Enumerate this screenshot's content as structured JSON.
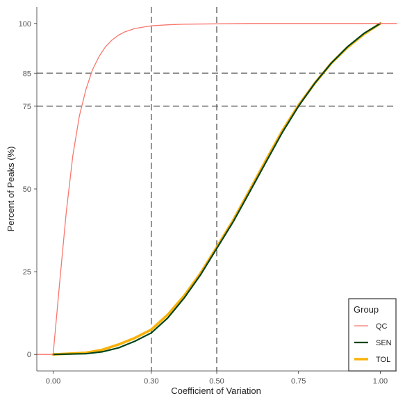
{
  "chart_data": {
    "type": "line",
    "title": "",
    "xlabel": "Coefficient of Variation",
    "ylabel": "Percent of Peaks (%)",
    "xlim": [
      -0.05,
      1.05
    ],
    "ylim": [
      -5,
      105
    ],
    "x_ticks": [
      {
        "value": 0.0,
        "label": "0.00"
      },
      {
        "value": 0.3,
        "label": "0.30"
      },
      {
        "value": 0.5,
        "label": "0.50"
      },
      {
        "value": 0.75,
        "label": "0.75"
      },
      {
        "value": 1.0,
        "label": "1.00"
      }
    ],
    "y_ticks": [
      {
        "value": 0,
        "label": "0"
      },
      {
        "value": 25,
        "label": "25"
      },
      {
        "value": 50,
        "label": "50"
      },
      {
        "value": 75,
        "label": "75"
      },
      {
        "value": 85,
        "label": "85"
      },
      {
        "value": 100,
        "label": "100"
      }
    ],
    "reference_lines": {
      "x": [
        0.3,
        0.5
      ],
      "y": [
        75,
        85
      ]
    },
    "grid": false,
    "legend": {
      "title": "Group",
      "position": "bottom-right"
    },
    "series": [
      {
        "name": "QC",
        "color": "#f8766d",
        "x": [
          -0.05,
          0.0,
          0.02,
          0.04,
          0.06,
          0.08,
          0.1,
          0.12,
          0.14,
          0.16,
          0.18,
          0.2,
          0.22,
          0.25,
          0.28,
          0.3,
          0.35,
          0.4,
          0.5,
          0.6,
          0.7,
          0.8,
          0.9,
          1.0,
          1.05
        ],
        "y": [
          0,
          0,
          22,
          43,
          60,
          72,
          80,
          86,
          90,
          93,
          95,
          96.5,
          97.5,
          98.5,
          99,
          99.3,
          99.6,
          99.8,
          99.9,
          100,
          100,
          100,
          100,
          100,
          100
        ]
      },
      {
        "name": "SEN",
        "color": "#00441b",
        "x": [
          0.0,
          0.1,
          0.15,
          0.2,
          0.25,
          0.3,
          0.35,
          0.4,
          0.45,
          0.5,
          0.55,
          0.6,
          0.65,
          0.7,
          0.75,
          0.8,
          0.85,
          0.9,
          0.95,
          1.0
        ],
        "y": [
          0,
          0.2,
          0.8,
          2,
          4,
          6.5,
          11,
          17,
          24,
          32,
          40,
          49,
          58,
          67,
          75,
          82,
          88,
          93,
          97,
          100
        ]
      },
      {
        "name": "TOL",
        "color": "#f9b208",
        "x": [
          0.0,
          0.1,
          0.15,
          0.2,
          0.25,
          0.3,
          0.35,
          0.4,
          0.45,
          0.5,
          0.55,
          0.6,
          0.65,
          0.7,
          0.75,
          0.8,
          0.85,
          0.9,
          0.95,
          1.0
        ],
        "y": [
          0,
          0.5,
          1.4,
          3,
          5,
          7.5,
          12,
          17.7,
          24.5,
          32.4,
          40.5,
          49.5,
          58.6,
          67.5,
          75.3,
          82,
          88,
          92.8,
          96.8,
          100
        ]
      }
    ]
  }
}
